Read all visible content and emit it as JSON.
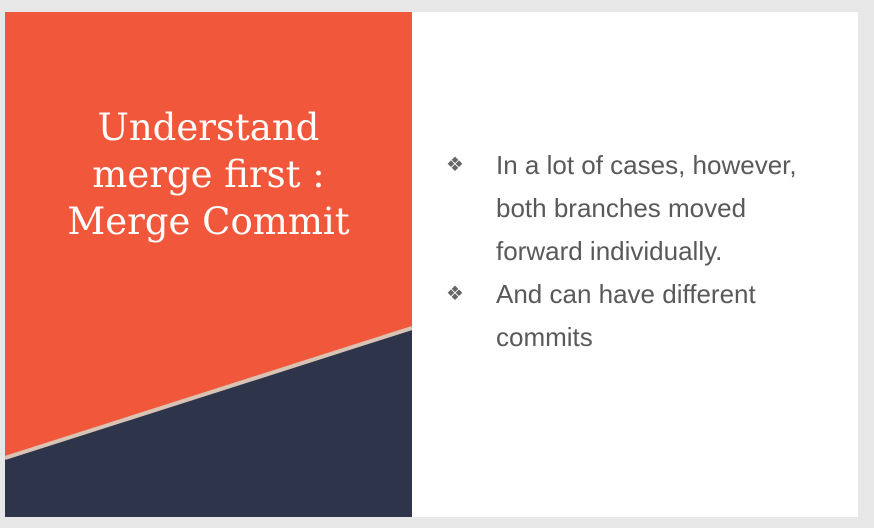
{
  "slide": {
    "title": "Understand\nmerge first :\nMerge Commit",
    "bullet_glyph": "❖",
    "bullets": [
      "In a lot of cases, however, both branches moved forward individually.",
      "And can have different commits"
    ],
    "colors": {
      "accent": "#f1573a",
      "dark_band": "#2e3449",
      "divider": "#d9c3b4",
      "body_text": "#595959",
      "title_text": "#ffffff"
    }
  }
}
